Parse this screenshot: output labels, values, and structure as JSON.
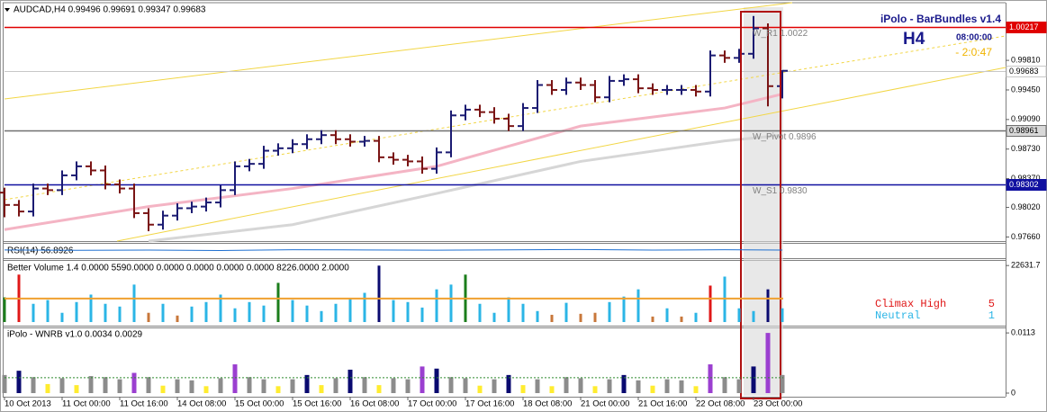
{
  "chart_data": [
    {
      "type": "ohlc",
      "title": "AUDCAD,H4  0.99496 0.99691 0.99347 0.99683",
      "categories": [
        "10 Oct 2013",
        null,
        null,
        null,
        "11 Oct 00:00",
        null,
        null,
        null,
        "11 Oct 16:00",
        null,
        null,
        null,
        "14 Oct 08:00",
        null,
        null,
        null,
        "15 Oct 00:00",
        null,
        null,
        null,
        "15 Oct 16:00",
        null,
        null,
        null,
        "16 Oct 08:00",
        null,
        null,
        null,
        "17 Oct 00:00",
        null,
        null,
        null,
        "17 Oct 16:00",
        null,
        null,
        null,
        "18 Oct 08:00",
        null,
        null,
        null,
        "21 Oct 00:00",
        null,
        null,
        null,
        "21 Oct 16:00",
        null,
        null,
        null,
        "22 Oct 08:00",
        null,
        null,
        null,
        "23 Oct 00:00",
        null,
        null
      ],
      "open": [
        0.982,
        0.9805,
        0.9797,
        0.9825,
        0.9823,
        0.9841,
        0.9852,
        0.9847,
        0.983,
        0.9825,
        0.9795,
        0.9781,
        0.9792,
        0.9801,
        0.9803,
        0.9808,
        0.9823,
        0.9852,
        0.9855,
        0.9871,
        0.9874,
        0.9879,
        0.9885,
        0.989,
        0.9885,
        0.9882,
        0.9883,
        0.9863,
        0.986,
        0.9858,
        0.9849,
        0.9869,
        0.9914,
        0.9921,
        0.9918,
        0.991,
        0.9901,
        0.9923,
        0.9951,
        0.9945,
        0.9954,
        0.9951,
        0.9936,
        0.9956,
        0.9958,
        0.9947,
        0.9945,
        0.9945,
        0.9945,
        0.9943,
        0.9987,
        0.9984,
        0.9989,
        1.002,
        0.99496
      ],
      "high": [
        0.9826,
        0.9811,
        0.9831,
        0.9831,
        0.9847,
        0.9858,
        0.9858,
        0.9853,
        0.9836,
        0.9831,
        0.9801,
        0.9798,
        0.9807,
        0.9809,
        0.9814,
        0.9829,
        0.9858,
        0.9861,
        0.9877,
        0.988,
        0.9885,
        0.9891,
        0.9896,
        0.9896,
        0.9891,
        0.9889,
        0.9889,
        0.9869,
        0.9866,
        0.9864,
        0.9875,
        0.992,
        0.9927,
        0.9927,
        0.9924,
        0.9916,
        0.9929,
        0.9957,
        0.9957,
        0.996,
        0.996,
        0.9957,
        0.9962,
        0.9964,
        0.9964,
        0.9953,
        0.9951,
        0.9951,
        0.9951,
        0.9993,
        0.9993,
        0.9995,
        1.0035,
        1.0026,
        0.99691
      ],
      "low": [
        0.979,
        0.9791,
        0.9791,
        0.9817,
        0.9817,
        0.9835,
        0.9841,
        0.9824,
        0.9819,
        0.9789,
        0.9773,
        0.9775,
        0.9786,
        0.9795,
        0.9797,
        0.9802,
        0.9817,
        0.9846,
        0.9849,
        0.9865,
        0.9868,
        0.9873,
        0.9879,
        0.9879,
        0.9876,
        0.9876,
        0.9857,
        0.9854,
        0.9852,
        0.9843,
        0.9843,
        0.9863,
        0.9908,
        0.9912,
        0.9904,
        0.9895,
        0.9895,
        0.9917,
        0.9939,
        0.9939,
        0.9945,
        0.993,
        0.993,
        0.995,
        0.9941,
        0.9939,
        0.9939,
        0.9939,
        0.9937,
        0.9937,
        0.9978,
        0.9978,
        0.9983,
        0.9925,
        0.99347
      ],
      "close": [
        0.9805,
        0.9797,
        0.9825,
        0.9823,
        0.9841,
        0.9852,
        0.9847,
        0.983,
        0.9825,
        0.9795,
        0.9781,
        0.9792,
        0.9801,
        0.9803,
        0.9808,
        0.9823,
        0.9852,
        0.9855,
        0.9871,
        0.9874,
        0.9879,
        0.9885,
        0.989,
        0.9885,
        0.9882,
        0.9883,
        0.9863,
        0.986,
        0.9858,
        0.9849,
        0.9869,
        0.9914,
        0.9921,
        0.9918,
        0.991,
        0.9901,
        0.9923,
        0.9951,
        0.9945,
        0.9954,
        0.9951,
        0.9936,
        0.9956,
        0.9958,
        0.9947,
        0.9945,
        0.9945,
        0.9945,
        0.9943,
        0.9987,
        0.9984,
        0.9989,
        1.002,
        0.99496,
        0.99683
      ],
      "up_color": "#1b1b72",
      "down_color": "#7a1414",
      "ylim": [
        0.9761,
        1.0049
      ],
      "yticks": [
        {
          "value": 0.9981,
          "label": "0.99810"
        },
        {
          "value": 0.9945,
          "label": "0.99450"
        },
        {
          "value": 0.9909,
          "label": "0.99090"
        },
        {
          "value": 0.9873,
          "label": "0.98730"
        },
        {
          "value": 0.9837,
          "label": "0.98370"
        },
        {
          "value": 0.9802,
          "label": "0.98020"
        },
        {
          "value": 0.9766,
          "label": "0.97660"
        }
      ],
      "levels": [
        {
          "value": 1.00217,
          "color": "#e00000",
          "box": "#e00000",
          "ink": "#ffffff",
          "tag": "W_R1 1.0022"
        },
        {
          "value": 0.99683,
          "color": "#c8c8c8",
          "box": "#ffffff",
          "ink": "#000000"
        },
        {
          "value": 0.98961,
          "color": "#707070",
          "box": "#d8d8d8",
          "ink": "#000000",
          "tag": "W_Pivot 0.9896"
        },
        {
          "value": 0.98302,
          "color": "#1010a0",
          "box": "#1010a0",
          "ink": "#ffffff",
          "tag": "W_S1 0.9830"
        }
      ],
      "overlays": [
        {
          "color": "#f4b4c4",
          "x": [
            0,
            10,
            20,
            30,
            40,
            50,
            54
          ],
          "values": [
            0.9775,
            0.9803,
            0.9825,
            0.9852,
            0.9901,
            0.9923,
            0.994
          ]
        },
        {
          "color": "#d6d6d6",
          "x": [
            10,
            20,
            30,
            40,
            50,
            54
          ],
          "values": [
            0.9761,
            0.9781,
            0.9819,
            0.9858,
            0.9883,
            0.989
          ]
        }
      ],
      "info": {
        "name": "iPolo - BarBundles v1.4",
        "period": "H4",
        "bar_time": "08:00:00",
        "remaining": "- 2:0:47"
      }
    },
    {
      "type": "line",
      "title": "RSI(14) 56.8926",
      "color": "#1e6fd0",
      "ylim": [
        0,
        100
      ],
      "x": [
        0,
        5,
        10,
        15,
        20,
        25,
        30,
        35,
        40,
        45,
        50,
        54
      ],
      "values": [
        58,
        55,
        57,
        54,
        60,
        58,
        56,
        59,
        62,
        57,
        60,
        56.8926
      ]
    },
    {
      "type": "bar",
      "title": "Better Volume 1.4 0.0000 5590.0000 0.0000 0.0000 0.0000 0.0000 8226.0000 2.0000",
      "values": [
        9900,
        19000,
        7300,
        8800,
        3700,
        8000,
        11000,
        7300,
        6200,
        15000,
        3700,
        7300,
        2600,
        6200,
        8000,
        11000,
        5500,
        8000,
        6600,
        15700,
        8800,
        6600,
        4400,
        7300,
        9500,
        11700,
        22600,
        8800,
        8000,
        5800,
        13100,
        15000,
        19000,
        7300,
        3700,
        9900,
        7300,
        4400,
        2900,
        7700,
        3300,
        3700,
        8000,
        10200,
        13100,
        2200,
        5500,
        2200,
        3700,
        14600,
        18200,
        5500,
        4400,
        13100,
        5500
      ],
      "colors": [
        "#1b7d1b",
        "#e01818",
        "#2bb5e6",
        "#2bb5e6",
        "#2bb5e6",
        "#2bb5e6",
        "#2bb5e6",
        "#2bb5e6",
        "#2bb5e6",
        "#2bb5e6",
        "#c8773a",
        "#2bb5e6",
        "#c8773a",
        "#2bb5e6",
        "#2bb5e6",
        "#2bb5e6",
        "#2bb5e6",
        "#2bb5e6",
        "#2bb5e6",
        "#1b7d1b",
        "#2bb5e6",
        "#2bb5e6",
        "#2bb5e6",
        "#2bb5e6",
        "#2bb5e6",
        "#2bb5e6",
        "#0a0a70",
        "#2bb5e6",
        "#2bb5e6",
        "#2bb5e6",
        "#2bb5e6",
        "#2bb5e6",
        "#1b7d1b",
        "#2bb5e6",
        "#2bb5e6",
        "#2bb5e6",
        "#2bb5e6",
        "#2bb5e6",
        "#c8773a",
        "#2bb5e6",
        "#c8773a",
        "#c8773a",
        "#2bb5e6",
        "#2bb5e6",
        "#2bb5e6",
        "#c8773a",
        "#2bb5e6",
        "#c8773a",
        "#2bb5e6",
        "#e01818",
        "#2bb5e6",
        "#2bb5e6",
        "#2bb5e6",
        "#0a0a70",
        "#2bb5e6"
      ],
      "average": 9400,
      "average_color": "#f0a030",
      "ylim": [
        0,
        24500
      ],
      "yticks": [
        22631.7
      ],
      "legend": [
        {
          "label": "Climax High",
          "count": 5,
          "color": "#e01818"
        },
        {
          "label": "Neutral",
          "count": 1,
          "color": "#2bb5e6"
        }
      ]
    },
    {
      "type": "bar",
      "title": "iPolo - WNRB v1.0 0.0034 0.0029",
      "values": [
        0.0034,
        0.0042,
        0.003,
        0.0017,
        0.0028,
        0.0015,
        0.0032,
        0.003,
        0.0026,
        0.0038,
        0.003,
        0.0014,
        0.0026,
        0.0024,
        0.0013,
        0.0028,
        0.0054,
        0.003,
        0.0026,
        0.0013,
        0.0026,
        0.0034,
        0.0015,
        0.0028,
        0.0044,
        0.003,
        0.0015,
        0.0028,
        0.0026,
        0.005,
        0.0046,
        0.003,
        0.0028,
        0.0014,
        0.0026,
        0.0034,
        0.0015,
        0.0026,
        0.0013,
        0.003,
        0.0028,
        0.0013,
        0.0026,
        0.0034,
        0.0024,
        0.0014,
        0.0026,
        0.0024,
        0.0013,
        0.0054,
        0.003,
        0.0026,
        0.005,
        0.0113,
        0.0034
      ],
      "colors": [
        "#8c8c8c",
        "#0a0a70",
        "#8c8c8c",
        "#ffec30",
        "#8c8c8c",
        "#ffec30",
        "#8c8c8c",
        "#8c8c8c",
        "#8c8c8c",
        "#9b3fd0",
        "#8c8c8c",
        "#ffec30",
        "#8c8c8c",
        "#8c8c8c",
        "#ffec30",
        "#8c8c8c",
        "#9b3fd0",
        "#8c8c8c",
        "#8c8c8c",
        "#ffec30",
        "#8c8c8c",
        "#0a0a70",
        "#ffec30",
        "#8c8c8c",
        "#0a0a70",
        "#8c8c8c",
        "#ffec30",
        "#8c8c8c",
        "#8c8c8c",
        "#9b3fd0",
        "#0a0a70",
        "#8c8c8c",
        "#8c8c8c",
        "#ffec30",
        "#8c8c8c",
        "#0a0a70",
        "#ffec30",
        "#8c8c8c",
        "#ffec30",
        "#8c8c8c",
        "#8c8c8c",
        "#ffec30",
        "#8c8c8c",
        "#0a0a70",
        "#8c8c8c",
        "#ffec30",
        "#8c8c8c",
        "#8c8c8c",
        "#ffec30",
        "#9b3fd0",
        "#8c8c8c",
        "#8c8c8c",
        "#0a0a70",
        "#9b3fd0",
        "#8c8c8c"
      ],
      "signal": 0.0029,
      "signal_color": "#2e8b2e",
      "ylim": [
        0,
        0.0125
      ],
      "yticks": [
        0,
        0.0113
      ]
    }
  ]
}
